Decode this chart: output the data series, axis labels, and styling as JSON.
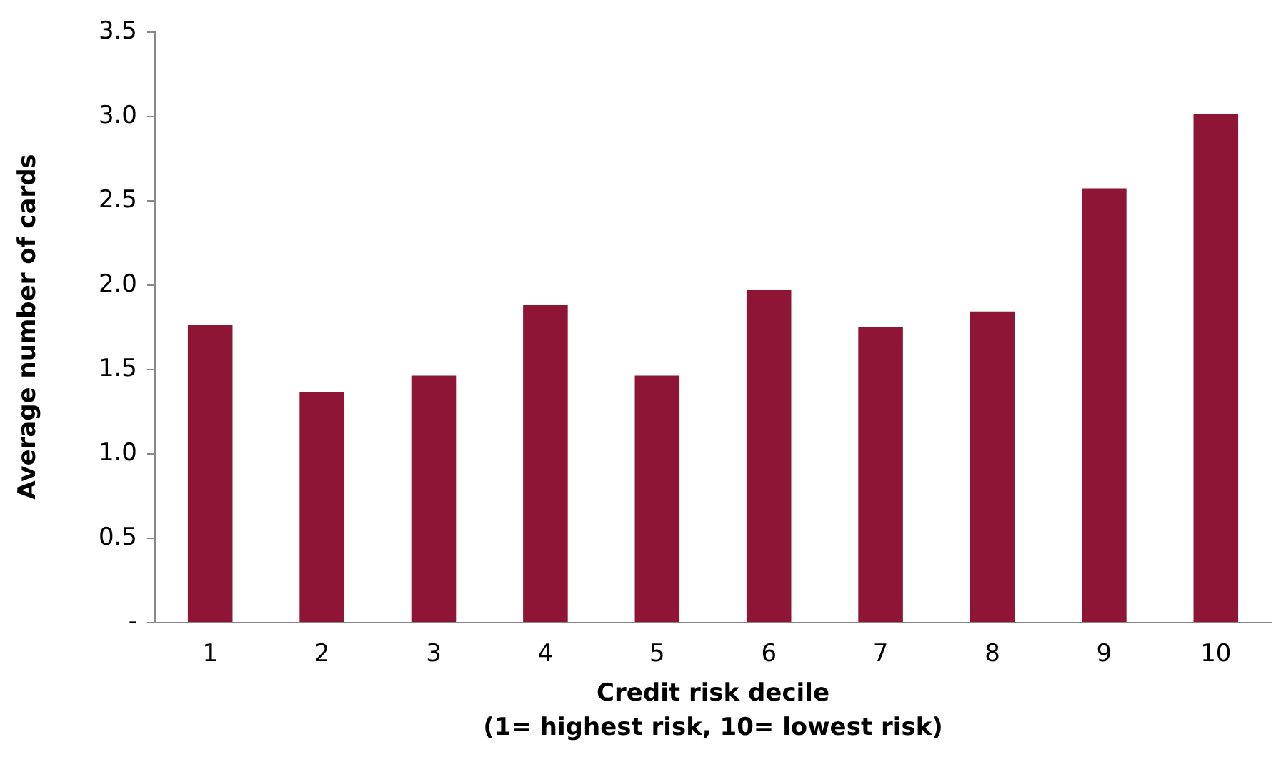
{
  "chart_data": {
    "type": "bar",
    "ylabel": "Average number of cards",
    "xlabel": "Credit risk decile\n(1= highest risk, 10= lowest risk)",
    "categories": [
      "1",
      "2",
      "3",
      "4",
      "5",
      "6",
      "7",
      "8",
      "9",
      "10"
    ],
    "values": [
      1.76,
      1.36,
      1.46,
      1.88,
      1.46,
      1.97,
      1.75,
      1.84,
      2.57,
      3.01
    ],
    "color": "#8f1537",
    "ylim": [
      0,
      3.5
    ],
    "yticks": [
      {
        "value": 0,
        "label": "-"
      },
      {
        "value": 0.5,
        "label": "0.5"
      },
      {
        "value": 1,
        "label": "1.0"
      },
      {
        "value": 1.5,
        "label": "1.5"
      },
      {
        "value": 2,
        "label": "2.0"
      },
      {
        "value": 2.5,
        "label": "2.5"
      },
      {
        "value": 3,
        "label": "3.0"
      },
      {
        "value": 3.5,
        "label": "3.5"
      }
    ],
    "grid": false
  }
}
